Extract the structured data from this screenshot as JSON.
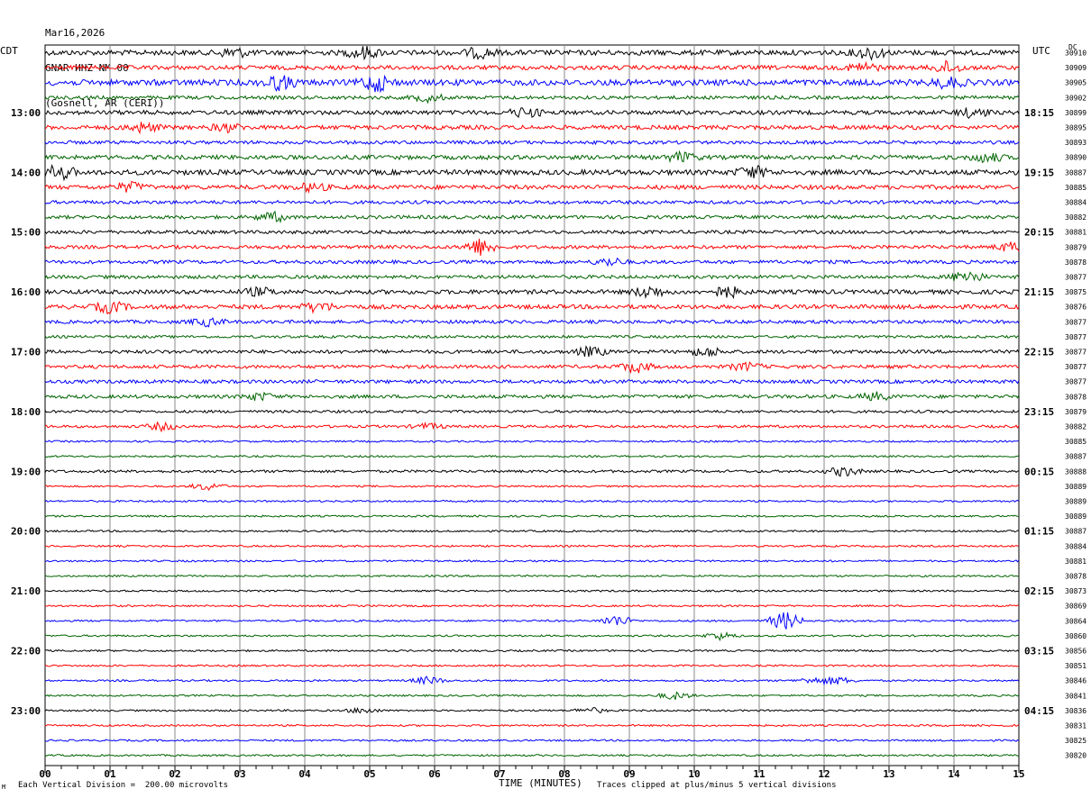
{
  "header": {
    "date": "Mar16,2026",
    "station": "GNAR HHZ NM 00",
    "location": "(Gosnell, AR (CERI))"
  },
  "left_timezone": "CDT",
  "right_timezone": "UTC",
  "dc_label": "DC",
  "footer": {
    "scale_note": "Each Vertical Division =  200.00 microvolts",
    "clip_note": "Traces clipped at plus/minus 5 vertical divisions",
    "corner_mark": "M"
  },
  "chart_data": {
    "type": "line",
    "title": "GNAR HHZ NM 00",
    "xlabel": "TIME (MINUTES)",
    "ylabel": "",
    "xlim": [
      0,
      15
    ],
    "x_ticks": [
      "00",
      "01",
      "02",
      "03",
      "04",
      "05",
      "06",
      "07",
      "08",
      "09",
      "10",
      "11",
      "12",
      "13",
      "14",
      "15"
    ],
    "trace_colors": [
      "#000000",
      "#ff0000",
      "#0000ff",
      "#006400"
    ],
    "left_hour_labels": [
      "13:00",
      "14:00",
      "15:00",
      "16:00",
      "17:00",
      "18:00",
      "19:00",
      "20:00",
      "21:00",
      "22:00",
      "23:00"
    ],
    "right_hour_labels": [
      "18:15",
      "19:15",
      "20:15",
      "21:15",
      "22:15",
      "23:15",
      "00:15",
      "01:15",
      "02:15",
      "03:15",
      "04:15"
    ],
    "dc_offsets": [
      "30910",
      "30909",
      "30905",
      "30902",
      "30899",
      "30895",
      "30893",
      "30890",
      "30887",
      "30885",
      "30884",
      "30882",
      "30881",
      "30879",
      "30878",
      "30877",
      "30875",
      "30876",
      "30877",
      "30877",
      "30877",
      "30877",
      "30877",
      "30878",
      "30879",
      "30882",
      "30885",
      "30887",
      "30888",
      "30889",
      "30889",
      "30889",
      "30887",
      "30884",
      "30881",
      "30878",
      "30873",
      "30869",
      "30864",
      "30860",
      "30856",
      "30851",
      "30846",
      "30841",
      "30836",
      "30831",
      "30825",
      "30820"
    ],
    "trace_activity": [
      5,
      4,
      6,
      3,
      4,
      4,
      3,
      4,
      5,
      4,
      3,
      3,
      3,
      3,
      3,
      3,
      4,
      4,
      3,
      2,
      3,
      3,
      3,
      3,
      2,
      2,
      1,
      1,
      2,
      1,
      1,
      1,
      1,
      1,
      1,
      1,
      1,
      1,
      1,
      1,
      1,
      1,
      1,
      1,
      1,
      1,
      1,
      1
    ],
    "events": [
      {
        "trace": 0,
        "minute": 2.9,
        "amp": 5
      },
      {
        "trace": 0,
        "minute": 4.9,
        "amp": 6
      },
      {
        "trace": 0,
        "minute": 6.7,
        "amp": 5
      },
      {
        "trace": 0,
        "minute": 12.7,
        "amp": 6
      },
      {
        "trace": 1,
        "minute": 13.9,
        "amp": 6
      },
      {
        "trace": 1,
        "minute": 12.6,
        "amp": 5
      },
      {
        "trace": 2,
        "minute": 3.6,
        "amp": 7
      },
      {
        "trace": 2,
        "minute": 5.1,
        "amp": 9
      },
      {
        "trace": 2,
        "minute": 13.9,
        "amp": 5
      },
      {
        "trace": 3,
        "minute": 5.9,
        "amp": 4
      },
      {
        "trace": 4,
        "minute": 7.4,
        "amp": 5
      },
      {
        "trace": 4,
        "minute": 14.3,
        "amp": 5
      },
      {
        "trace": 5,
        "minute": 1.5,
        "amp": 5
      },
      {
        "trace": 5,
        "minute": 2.8,
        "amp": 4
      },
      {
        "trace": 7,
        "minute": 9.8,
        "amp": 5
      },
      {
        "trace": 7,
        "minute": 14.5,
        "amp": 5
      },
      {
        "trace": 8,
        "minute": 0.2,
        "amp": 8
      },
      {
        "trace": 8,
        "minute": 10.9,
        "amp": 6
      },
      {
        "trace": 9,
        "minute": 1.3,
        "amp": 5
      },
      {
        "trace": 9,
        "minute": 4.1,
        "amp": 4
      },
      {
        "trace": 11,
        "minute": 3.5,
        "amp": 5
      },
      {
        "trace": 13,
        "minute": 6.7,
        "amp": 9
      },
      {
        "trace": 13,
        "minute": 14.9,
        "amp": 5
      },
      {
        "trace": 14,
        "minute": 8.7,
        "amp": 4
      },
      {
        "trace": 15,
        "minute": 14.2,
        "amp": 7
      },
      {
        "trace": 16,
        "minute": 3.3,
        "amp": 4
      },
      {
        "trace": 16,
        "minute": 9.3,
        "amp": 6
      },
      {
        "trace": 16,
        "minute": 10.5,
        "amp": 6
      },
      {
        "trace": 17,
        "minute": 1.0,
        "amp": 6
      },
      {
        "trace": 17,
        "minute": 4.2,
        "amp": 5
      },
      {
        "trace": 18,
        "minute": 2.5,
        "amp": 4
      },
      {
        "trace": 20,
        "minute": 8.4,
        "amp": 5
      },
      {
        "trace": 20,
        "minute": 10.2,
        "amp": 5
      },
      {
        "trace": 21,
        "minute": 9.1,
        "amp": 6
      },
      {
        "trace": 21,
        "minute": 10.8,
        "amp": 4
      },
      {
        "trace": 23,
        "minute": 3.3,
        "amp": 4
      },
      {
        "trace": 23,
        "minute": 12.8,
        "amp": 4
      },
      {
        "trace": 25,
        "minute": 1.8,
        "amp": 4
      },
      {
        "trace": 25,
        "minute": 5.9,
        "amp": 3
      },
      {
        "trace": 28,
        "minute": 12.3,
        "amp": 5
      },
      {
        "trace": 29,
        "minute": 2.5,
        "amp": 4
      },
      {
        "trace": 38,
        "minute": 8.8,
        "amp": 6
      },
      {
        "trace": 38,
        "minute": 11.4,
        "amp": 10
      },
      {
        "trace": 39,
        "minute": 10.4,
        "amp": 4
      },
      {
        "trace": 42,
        "minute": 5.9,
        "amp": 4
      },
      {
        "trace": 42,
        "minute": 11.8,
        "amp": 3
      },
      {
        "trace": 42,
        "minute": 12.2,
        "amp": 4
      },
      {
        "trace": 43,
        "minute": 9.7,
        "amp": 4
      },
      {
        "trace": 44,
        "minute": 4.9,
        "amp": 3
      },
      {
        "trace": 44,
        "minute": 8.4,
        "amp": 3
      }
    ]
  }
}
